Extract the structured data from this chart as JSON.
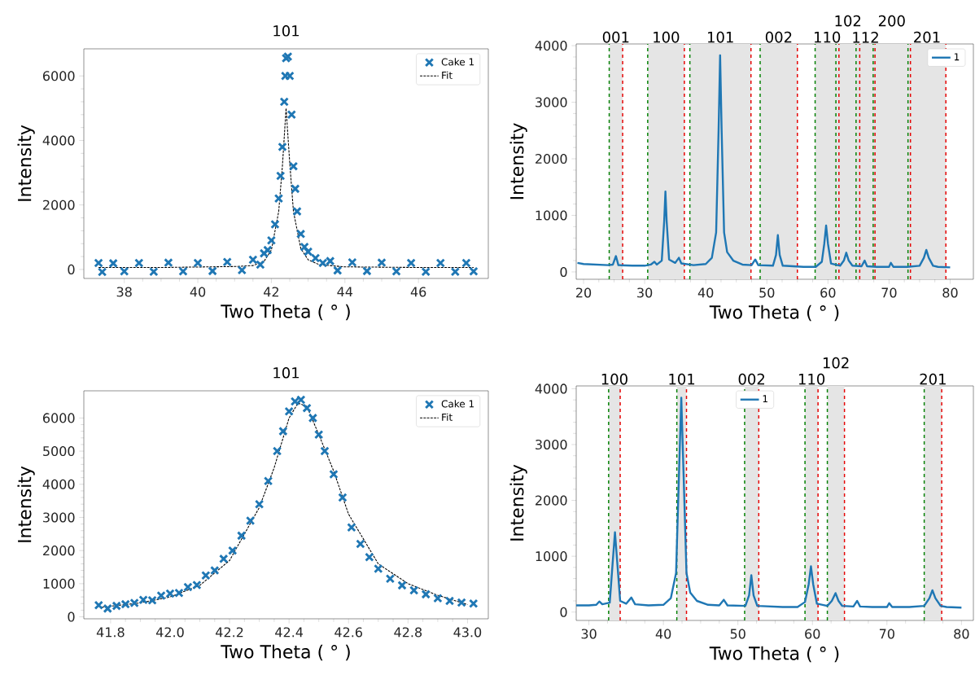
{
  "chart_data": [
    {
      "type": "scatter",
      "title": "101",
      "xlabel": "Two Theta ( ° )",
      "ylabel": "Intensity",
      "xlim": [
        36.9,
        47.9
      ],
      "ylim": [
        -280,
        6840
      ],
      "xticks": [
        38,
        40,
        42,
        44,
        46
      ],
      "yticks": [
        0,
        2000,
        4000,
        6000
      ],
      "legend": "top right",
      "series": [
        {
          "name": "Cake 1",
          "type": "scatter",
          "marker": "cross",
          "color": "#1f77b4",
          "x": [
            37.3,
            37.4,
            37.7,
            38.0,
            38.4,
            38.8,
            39.2,
            39.6,
            40.0,
            40.4,
            40.8,
            41.2,
            41.5,
            41.7,
            41.8,
            41.9,
            42.0,
            42.1,
            42.2,
            42.25,
            42.3,
            42.35,
            42.38,
            42.4,
            42.45,
            42.5,
            42.55,
            42.6,
            42.65,
            42.7,
            42.8,
            42.9,
            43.0,
            43.2,
            43.4,
            43.6,
            43.8,
            44.2,
            44.6,
            45.0,
            45.4,
            45.8,
            46.2,
            46.6,
            47.0,
            47.3,
            47.5
          ],
          "values": [
            200,
            -80,
            190,
            -60,
            200,
            -70,
            210,
            -60,
            200,
            -50,
            230,
            -20,
            300,
            150,
            500,
            600,
            900,
            1400,
            2200,
            2900,
            3800,
            5200,
            6000,
            6550,
            6600,
            6000,
            4800,
            3200,
            2500,
            1800,
            1100,
            700,
            550,
            350,
            200,
            260,
            -30,
            220,
            -50,
            210,
            -60,
            200,
            -70,
            200,
            -70,
            200,
            -60
          ]
        },
        {
          "name": "Fit",
          "type": "line",
          "line_style": "dashed",
          "color": "#000000",
          "x": [
            37.3,
            39,
            41,
            41.5,
            41.8,
            42.0,
            42.2,
            42.3,
            42.4,
            42.5,
            42.6,
            42.8,
            43.0,
            43.3,
            44,
            46,
            47.5
          ],
          "values": [
            60,
            60,
            90,
            120,
            250,
            600,
            1800,
            3200,
            5000,
            3300,
            1800,
            650,
            300,
            150,
            80,
            60,
            60
          ]
        }
      ]
    },
    {
      "type": "line",
      "xlabel": "Two Theta ( ° )",
      "ylabel": "Intensity",
      "xlim": [
        18.8,
        83.8
      ],
      "ylim": [
        -130,
        4030
      ],
      "xticks": [
        20,
        30,
        40,
        50,
        60,
        70,
        80
      ],
      "yticks": [
        0,
        1000,
        2000,
        3000,
        4000
      ],
      "legend": "top right",
      "bands": [
        {
          "axis": "x",
          "from": 24.2,
          "to": 26.4,
          "label": "001",
          "color": "#e5e5e5"
        },
        {
          "axis": "x",
          "from": 30.5,
          "to": 36.5,
          "label": "100",
          "color": "#e5e5e5"
        },
        {
          "axis": "x",
          "from": 37.4,
          "to": 47.4,
          "label": "101",
          "color": "#e5e5e5"
        },
        {
          "axis": "x",
          "from": 48.9,
          "to": 55.0,
          "label": "002",
          "color": "#e5e5e5"
        },
        {
          "axis": "x",
          "from": 57.9,
          "to": 61.8,
          "label": "110",
          "color": "#e5e5e5"
        },
        {
          "axis": "x",
          "from": 61.3,
          "to": 65.2,
          "label": "102",
          "color": "#e5e5e5"
        },
        {
          "axis": "x",
          "from": 64.6,
          "to": 67.7,
          "label": "112",
          "color": "#e5e5e5"
        },
        {
          "axis": "x",
          "from": 67.4,
          "to": 73.5,
          "label": "200",
          "color": "#e5e5e5"
        },
        {
          "axis": "x",
          "from": 73.1,
          "to": 79.3,
          "label": "201",
          "color": "#e5e5e5"
        }
      ],
      "ref_lines": [
        {
          "axis": "x",
          "value": 24.2,
          "color": "#008000",
          "line_style": "dashed"
        },
        {
          "axis": "x",
          "value": 30.5,
          "color": "#008000",
          "line_style": "dashed"
        },
        {
          "axis": "x",
          "value": 37.4,
          "color": "#008000",
          "line_style": "dashed"
        },
        {
          "axis": "x",
          "value": 48.9,
          "color": "#008000",
          "line_style": "dashed"
        },
        {
          "axis": "x",
          "value": 57.9,
          "color": "#008000",
          "line_style": "dashed"
        },
        {
          "axis": "x",
          "value": 61.3,
          "color": "#008000",
          "line_style": "dashed"
        },
        {
          "axis": "x",
          "value": 64.6,
          "color": "#008000",
          "line_style": "dashed"
        },
        {
          "axis": "x",
          "value": 67.4,
          "color": "#008000",
          "line_style": "dashed"
        },
        {
          "axis": "x",
          "value": 73.1,
          "color": "#008000",
          "line_style": "dashed"
        },
        {
          "axis": "x",
          "value": 26.4,
          "color": "#e50000",
          "line_style": "dashed"
        },
        {
          "axis": "x",
          "value": 36.5,
          "color": "#e50000",
          "line_style": "dashed"
        },
        {
          "axis": "x",
          "value": 47.4,
          "color": "#e50000",
          "line_style": "dashed"
        },
        {
          "axis": "x",
          "value": 55.0,
          "color": "#e50000",
          "line_style": "dashed"
        },
        {
          "axis": "x",
          "value": 61.8,
          "color": "#e50000",
          "line_style": "dashed"
        },
        {
          "axis": "x",
          "value": 65.2,
          "color": "#e50000",
          "line_style": "dashed"
        },
        {
          "axis": "x",
          "value": 67.7,
          "color": "#e50000",
          "line_style": "dashed"
        },
        {
          "axis": "x",
          "value": 73.5,
          "color": "#e50000",
          "line_style": "dashed"
        },
        {
          "axis": "x",
          "value": 79.3,
          "color": "#e50000",
          "line_style": "dashed"
        }
      ],
      "series": [
        {
          "name": "1",
          "color": "#1f77b4",
          "x": [
            19,
            20,
            22,
            24,
            24.8,
            25.3,
            25.7,
            28,
            30,
            31,
            31.6,
            32,
            32.8,
            33.2,
            33.4,
            33.6,
            34,
            35,
            35.6,
            36,
            38,
            40,
            41,
            41.7,
            42.1,
            42.35,
            42.6,
            43,
            43.5,
            44.5,
            46,
            47.5,
            48.1,
            48.6,
            51,
            51.5,
            51.8,
            52.1,
            52.6,
            56,
            58,
            59,
            59.4,
            59.7,
            60,
            60.5,
            62,
            62.6,
            63.0,
            63.4,
            64,
            65.5,
            66.0,
            66.4,
            68,
            70,
            70.3,
            70.7,
            73,
            75,
            75.7,
            76.1,
            76.5,
            77.2,
            78,
            80
          ],
          "values": [
            160,
            140,
            130,
            120,
            130,
            280,
            120,
            110,
            110,
            130,
            180,
            130,
            200,
            900,
            1420,
            900,
            220,
            160,
            250,
            150,
            120,
            140,
            250,
            700,
            2500,
            3830,
            2500,
            700,
            350,
            200,
            130,
            120,
            220,
            120,
            110,
            300,
            650,
            300,
            110,
            90,
            90,
            180,
            500,
            820,
            500,
            150,
            110,
            200,
            340,
            200,
            110,
            100,
            200,
            100,
            90,
            90,
            160,
            90,
            90,
            110,
            250,
            390,
            250,
            110,
            90,
            80
          ]
        }
      ]
    },
    {
      "type": "scatter",
      "title": "101",
      "xlabel": "Two Theta ( ° )",
      "ylabel": "Intensity",
      "xlim": [
        41.71,
        43.07
      ],
      "ylim": [
        -60,
        6820
      ],
      "xticks": [
        41.8,
        {
          "value": 42,
          "label": "42.0"
        },
        42.2,
        42.4,
        42.6,
        42.8,
        {
          "value": 43,
          "label": "43.0"
        }
      ],
      "yticks": [
        0,
        1000,
        2000,
        3000,
        4000,
        5000,
        6000
      ],
      "legend": "top right",
      "series": [
        {
          "name": "Cake 1",
          "type": "scatter",
          "marker": "cross",
          "color": "#1f77b4",
          "x": [
            41.76,
            41.79,
            41.82,
            41.85,
            41.88,
            41.91,
            41.94,
            41.97,
            42.0,
            42.03,
            42.06,
            42.09,
            42.12,
            42.15,
            42.18,
            42.21,
            42.24,
            42.27,
            42.3,
            42.33,
            42.36,
            42.38,
            42.4,
            42.42,
            42.44,
            42.46,
            42.48,
            42.5,
            42.52,
            42.55,
            42.58,
            42.61,
            42.64,
            42.67,
            42.7,
            42.74,
            42.78,
            42.82,
            42.86,
            42.9,
            42.94,
            42.98,
            43.02
          ],
          "values": [
            350,
            250,
            330,
            380,
            420,
            510,
            500,
            640,
            700,
            720,
            900,
            960,
            1250,
            1400,
            1750,
            2000,
            2450,
            2900,
            3400,
            4100,
            5000,
            5600,
            6200,
            6500,
            6550,
            6300,
            6000,
            5500,
            5000,
            4300,
            3600,
            2700,
            2200,
            1800,
            1450,
            1150,
            950,
            800,
            680,
            560,
            480,
            430,
            400
          ]
        },
        {
          "name": "Fit",
          "type": "line",
          "line_style": "dashed",
          "color": "#000000",
          "x": [
            41.77,
            41.9,
            42.0,
            42.1,
            42.2,
            42.3,
            42.35,
            42.4,
            42.43,
            42.46,
            42.5,
            42.55,
            42.6,
            42.7,
            42.8,
            42.9,
            43.0
          ],
          "values": [
            290,
            420,
            600,
            950,
            1700,
            3300,
            4500,
            6000,
            6450,
            6350,
            5500,
            4400,
            3100,
            1600,
            1000,
            650,
            370
          ]
        }
      ]
    },
    {
      "type": "line",
      "xlabel": "Two Theta ( ° )",
      "ylabel": "Intensity",
      "xlim": [
        28.3,
        81.6
      ],
      "ylim": [
        -150,
        4050
      ],
      "xticks": [
        30,
        40,
        50,
        60,
        70,
        80
      ],
      "yticks": [
        0,
        1000,
        2000,
        3000,
        4000
      ],
      "legend": "top",
      "bands": [
        {
          "axis": "x",
          "from": 32.65,
          "to": 34.2,
          "label": "100",
          "color": "#e5e5e5"
        },
        {
          "axis": "x",
          "from": 41.8,
          "to": 43.1,
          "label": "101",
          "color": "#e5e5e5"
        },
        {
          "axis": "x",
          "from": 50.9,
          "to": 52.8,
          "label": "002",
          "color": "#e5e5e5"
        },
        {
          "axis": "x",
          "from": 59.0,
          "to": 60.75,
          "label": "110",
          "color": "#e5e5e5"
        },
        {
          "axis": "x",
          "from": 62.0,
          "to": 64.3,
          "label": "102",
          "color": "#e5e5e5"
        },
        {
          "axis": "x",
          "from": 75.0,
          "to": 77.35,
          "label": "201",
          "color": "#e5e5e5"
        }
      ],
      "ref_lines": [
        {
          "axis": "x",
          "value": 32.65,
          "color": "#008000",
          "line_style": "dashed"
        },
        {
          "axis": "x",
          "value": 41.8,
          "color": "#008000",
          "line_style": "dashed"
        },
        {
          "axis": "x",
          "value": 50.9,
          "color": "#008000",
          "line_style": "dashed"
        },
        {
          "axis": "x",
          "value": 59.0,
          "color": "#008000",
          "line_style": "dashed"
        },
        {
          "axis": "x",
          "value": 62.0,
          "color": "#008000",
          "line_style": "dashed"
        },
        {
          "axis": "x",
          "value": 75.0,
          "color": "#008000",
          "line_style": "dashed"
        },
        {
          "axis": "x",
          "value": 34.2,
          "color": "#e50000",
          "line_style": "dashed"
        },
        {
          "axis": "x",
          "value": 43.1,
          "color": "#e50000",
          "line_style": "dashed"
        },
        {
          "axis": "x",
          "value": 52.8,
          "color": "#e50000",
          "line_style": "dashed"
        },
        {
          "axis": "x",
          "value": 60.75,
          "color": "#e50000",
          "line_style": "dashed"
        },
        {
          "axis": "x",
          "value": 64.3,
          "color": "#e50000",
          "line_style": "dashed"
        },
        {
          "axis": "x",
          "value": 77.35,
          "color": "#e50000",
          "line_style": "dashed"
        }
      ],
      "series": [
        {
          "name": "1",
          "color": "#1f77b4",
          "x": [
            28.3,
            30,
            31,
            31.4,
            31.8,
            32.8,
            33.2,
            33.5,
            33.8,
            34.2,
            35,
            35.7,
            36.2,
            38,
            40,
            41,
            41.7,
            42.1,
            42.4,
            42.7,
            43.1,
            43.6,
            44.5,
            46,
            47.5,
            48.1,
            48.6,
            51,
            51.5,
            51.8,
            52.1,
            52.6,
            56,
            58,
            59,
            59.5,
            59.8,
            60.1,
            60.6,
            62,
            62.6,
            63.1,
            63.5,
            64,
            65.5,
            66.0,
            66.4,
            68,
            70,
            70.3,
            70.7,
            73,
            75,
            75.7,
            76.1,
            76.5,
            77.2,
            78,
            80
          ],
          "values": [
            120,
            120,
            130,
            190,
            140,
            170,
            900,
            1430,
            900,
            200,
            150,
            260,
            140,
            120,
            130,
            250,
            700,
            2500,
            3840,
            2500,
            700,
            350,
            200,
            130,
            120,
            220,
            120,
            110,
            300,
            660,
            300,
            110,
            90,
            90,
            180,
            500,
            820,
            500,
            150,
            110,
            200,
            340,
            200,
            110,
            100,
            200,
            100,
            90,
            90,
            160,
            90,
            90,
            110,
            250,
            390,
            250,
            110,
            90,
            80
          ]
        }
      ]
    }
  ]
}
